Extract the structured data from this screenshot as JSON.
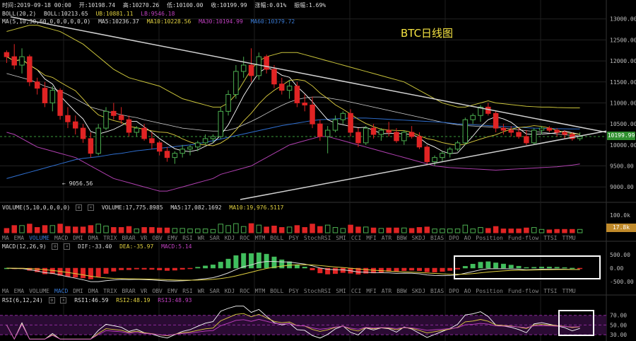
{
  "chart_title": "BTC日线图",
  "header": {
    "time": "时间:2019-09-18 00:00",
    "open": "开:10198.74",
    "high": "高:10270.26",
    "low": "低:10100.00",
    "close": "收:10199.99",
    "change": "涨幅:0.01%",
    "amplitude": "振幅:1.69%"
  },
  "boll_line": {
    "label": "BOLL(20,2)",
    "mid": "BOLL:10213.65",
    "ub": "UB:10881.11",
    "lb": "LB:9546.18"
  },
  "ma_line": {
    "label": "MA(5,10,30,60,0,0,0,0,0,0)",
    "ma5": "MA5:10236.37",
    "ma10": "MA10:10228.56",
    "ma30": "MA30:10194.99",
    "ma60": "MA60:10379.72"
  },
  "last_price": "10199.99",
  "min_label": "← 9056.56",
  "colors": {
    "up": "#4caf50",
    "down": "#e02424",
    "boll": "#c8c23a",
    "bollmid": "#cfcfcf",
    "ma5": "#ffffff",
    "ma10": "#e0d040",
    "ma30": "#b040b0",
    "ma60": "#2f6fd0",
    "rsi1": "#ffffff",
    "rsi2": "#e0d040",
    "rsi3": "#c040c0"
  },
  "volume_line": {
    "label": "VOLUME(5,10,0,0,0,0)",
    "volume": "VOLUME:17,775.8985",
    "ma5": "MA5:17,082.1692",
    "ma10": "MA10:19,976.5117"
  },
  "volume_axis": [
    "100.0k"
  ],
  "volume_last": "17.8k",
  "macd_line": {
    "label": "MACD(12,26,9)",
    "dif": "DIF:-33.40",
    "dea": "DEA:-35.97",
    "macd": "MACD:5.14"
  },
  "macd_axis": [
    "500.00",
    "0.00",
    "-500.00"
  ],
  "rsi_line": {
    "label": "RSI(6,12,24)",
    "rsi1": "RSI1:46.59",
    "rsi2": "RSI2:48.19",
    "rsi3": "RSI3:48.93"
  },
  "rsi_axis": [
    "70.00",
    "50.00",
    "30.00"
  ],
  "indicator_tabs": [
    "MA",
    "EMA",
    "VOLUME",
    "MACD",
    "DMI",
    "DMA",
    "TRIX",
    "BRAR",
    "VR",
    "OBV",
    "EMV",
    "RSI",
    "WR",
    "SAR",
    "KDJ",
    "ROC",
    "MTM",
    "BOLL",
    "PSY",
    "StochRSI",
    "SMI",
    "CCI",
    "MFI",
    "ATR",
    "BBW",
    "SKDJ",
    "BIAS",
    "DPO",
    "AO",
    "Position",
    "Fund-flow",
    "TTSI",
    "TTMU"
  ],
  "tabs_row1_active": "VOLUME",
  "tabs_row2_active": "MACD",
  "chart_data": {
    "type": "candlestick",
    "title": "BTC日线图",
    "y_ticks": [
      13000,
      12500,
      12000,
      11500,
      11000,
      10500,
      10000,
      9500,
      9000
    ],
    "ylim": [
      8650,
      13450
    ],
    "candles": [
      [
        12200,
        12250,
        11950,
        12100
      ],
      [
        12100,
        12400,
        11800,
        11900
      ],
      [
        11900,
        12300,
        11700,
        12100
      ],
      [
        12100,
        12150,
        11400,
        11500
      ],
      [
        11500,
        11600,
        11200,
        11350
      ],
      [
        11350,
        11500,
        10900,
        11000
      ],
      [
        11000,
        11400,
        10800,
        11300
      ],
      [
        11300,
        11350,
        10600,
        10700
      ],
      [
        10700,
        10900,
        10400,
        10550
      ],
      [
        10550,
        10700,
        10250,
        10400
      ],
      [
        10400,
        10500,
        10050,
        10150
      ],
      [
        10150,
        10300,
        9700,
        9800
      ],
      [
        9800,
        10500,
        9750,
        10400
      ],
      [
        10400,
        10900,
        10350,
        10800
      ],
      [
        10800,
        11000,
        10600,
        10700
      ],
      [
        10700,
        10900,
        10500,
        10600
      ],
      [
        10600,
        10700,
        10200,
        10300
      ],
      [
        10300,
        10450,
        10200,
        10400
      ],
      [
        10400,
        10500,
        10100,
        10150
      ],
      [
        10150,
        10300,
        9900,
        10050
      ],
      [
        10050,
        10100,
        9750,
        9850
      ],
      [
        9850,
        9950,
        9600,
        9700
      ],
      [
        9700,
        9850,
        9550,
        9800
      ],
      [
        9800,
        10000,
        9700,
        9900
      ],
      [
        9900,
        10000,
        9750,
        9950
      ],
      [
        9950,
        10100,
        9850,
        10050
      ],
      [
        10050,
        10250,
        10000,
        10150
      ],
      [
        10150,
        10250,
        10050,
        10200
      ],
      [
        10200,
        10900,
        10150,
        10800
      ],
      [
        10800,
        11300,
        10700,
        11200
      ],
      [
        11200,
        11900,
        11100,
        11750
      ],
      [
        11750,
        12100,
        11600,
        11900
      ],
      [
        11900,
        12300,
        11500,
        11650
      ],
      [
        11650,
        12200,
        11550,
        12100
      ],
      [
        12100,
        12150,
        11700,
        11800
      ],
      [
        11800,
        11900,
        11350,
        11450
      ],
      [
        11450,
        11600,
        11200,
        11300
      ],
      [
        11300,
        11550,
        11100,
        11400
      ],
      [
        11400,
        11500,
        10900,
        11000
      ],
      [
        11000,
        11200,
        10800,
        10950
      ],
      [
        10950,
        11150,
        10400,
        10500
      ],
      [
        10500,
        10600,
        10100,
        10200
      ],
      [
        10200,
        10450,
        9800,
        10350
      ],
      [
        10350,
        10700,
        10300,
        10600
      ],
      [
        10600,
        10800,
        10500,
        10750
      ],
      [
        10750,
        10850,
        10200,
        10300
      ],
      [
        10300,
        10400,
        9950,
        10050
      ],
      [
        10050,
        10450,
        10000,
        10400
      ],
      [
        10400,
        10500,
        10150,
        10250
      ],
      [
        10250,
        10400,
        10100,
        10350
      ],
      [
        10350,
        10550,
        10200,
        10300
      ],
      [
        10300,
        10400,
        10050,
        10100
      ],
      [
        10100,
        10350,
        10000,
        10300
      ],
      [
        10300,
        10450,
        10150,
        10200
      ],
      [
        10200,
        10300,
        9900,
        9950
      ],
      [
        9950,
        10000,
        9550,
        9600
      ],
      [
        9600,
        9750,
        9500,
        9700
      ],
      [
        9700,
        9850,
        9600,
        9800
      ],
      [
        9800,
        9950,
        9700,
        9900
      ],
      [
        9900,
        10100,
        9850,
        10050
      ],
      [
        10050,
        10650,
        10000,
        10600
      ],
      [
        10600,
        10750,
        10500,
        10700
      ],
      [
        10700,
        10950,
        10550,
        10900
      ],
      [
        10900,
        11000,
        10700,
        10750
      ],
      [
        10750,
        10800,
        10300,
        10400
      ],
      [
        10400,
        10500,
        10250,
        10350
      ],
      [
        10350,
        10450,
        10200,
        10300
      ],
      [
        10300,
        10400,
        10150,
        10200
      ],
      [
        10200,
        10350,
        10000,
        10050
      ],
      [
        10050,
        10400,
        10000,
        10350
      ],
      [
        10350,
        10450,
        10250,
        10400
      ],
      [
        10400,
        10450,
        10300,
        10350
      ],
      [
        10350,
        10400,
        10200,
        10300
      ],
      [
        10300,
        10350,
        10150,
        10250
      ],
      [
        10250,
        10300,
        10100,
        10150
      ],
      [
        10150,
        10300,
        10100,
        10200
      ]
    ],
    "boll_mid": [
      11700,
      11650,
      11600,
      11550,
      11480,
      11400,
      11350,
      11280,
      11200,
      11100,
      11000,
      10900,
      10850,
      10800,
      10760,
      10720,
      10680,
      10650,
      10600,
      10560,
      10520,
      10480,
      10440,
      10400,
      10380,
      10360,
      10340,
      10330,
      10330,
      10350,
      10400,
      10480,
      10560,
      10650,
      10750,
      10850,
      10940,
      11020,
      11080,
      11120,
      11140,
      11140,
      11120,
      11090,
      11060,
      11020,
      10980,
      10940,
      10900,
      10860,
      10820,
      10780,
      10740,
      10700,
      10660,
      10620,
      10580,
      10540,
      10510,
      10480,
      10460,
      10450,
      10440,
      10430,
      10420,
      10400,
      10380,
      10360,
      10340,
      10320,
      10300,
      10280,
      10260,
      10240,
      10230,
      10214
    ],
    "boll_upper": [
      12700,
      12750,
      12800,
      12850,
      12850,
      12800,
      12750,
      12700,
      12600,
      12500,
      12400,
      12250,
      12100,
      11950,
      11800,
      11700,
      11600,
      11550,
      11500,
      11450,
      11400,
      11300,
      11200,
      11100,
      11050,
      11000,
      10950,
      10900,
      10900,
      11000,
      11200,
      11500,
      11800,
      12000,
      12100,
      12150,
      12200,
      12200,
      12200,
      12150,
      12100,
      12050,
      12000,
      11950,
      11900,
      11850,
      11800,
      11750,
      11700,
      11650,
      11600,
      11550,
      11500,
      11400,
      11300,
      11200,
      11100,
      11000,
      10950,
      10900,
      10900,
      10950,
      11000,
      11050,
      11000,
      10980,
      10960,
      10940,
      10920,
      10910,
      10900,
      10900,
      10890,
      10885,
      10882,
      10881
    ],
    "boll_lower": [
      10300,
      10250,
      10150,
      10050,
      9950,
      9900,
      9850,
      9800,
      9750,
      9700,
      9600,
      9500,
      9400,
      9300,
      9200,
      9150,
      9100,
      9050,
      9000,
      8950,
      8900,
      8900,
      8950,
      9000,
      9050,
      9100,
      9150,
      9200,
      9300,
      9350,
      9400,
      9450,
      9500,
      9600,
      9700,
      9800,
      9900,
      10000,
      10050,
      10100,
      10150,
      10200,
      10200,
      10150,
      10100,
      10050,
      10000,
      9950,
      9900,
      9850,
      9800,
      9750,
      9700,
      9650,
      9600,
      9550,
      9500,
      9480,
      9460,
      9450,
      9440,
      9430,
      9420,
      9410,
      9400,
      9410,
      9420,
      9430,
      9440,
      9450,
      9460,
      9470,
      9480,
      9500,
      9520,
      9546
    ],
    "ma60": [
      9200,
      9250,
      9300,
      9350,
      9400,
      9450,
      9500,
      9550,
      9600,
      9650,
      9680,
      9700,
      9720,
      9750,
      9780,
      9800,
      9830,
      9860,
      9880,
      9900,
      9920,
      9940,
      9960,
      9980,
      10000,
      10030,
      10060,
      10100,
      10140,
      10180,
      10220,
      10260,
      10300,
      10340,
      10380,
      10420,
      10460,
      10490,
      10520,
      10550,
      10580,
      10600,
      10610,
      10620,
      10630,
      10640,
      10640,
      10640,
      10630,
      10620,
      10610,
      10600,
      10590,
      10580,
      10570,
      10560,
      10550,
      10540,
      10520,
      10500,
      10490,
      10480,
      10470,
      10460,
      10450,
      10440,
      10430,
      10420,
      10410,
      10400,
      10395,
      10390,
      10386,
      10383,
      10381,
      10380
    ],
    "volume_axis_max": 100000,
    "macd_ylim": [
      -650,
      650
    ],
    "rsi_ylim": [
      20,
      90
    ],
    "rsi_levels": [
      70,
      50,
      30
    ]
  }
}
